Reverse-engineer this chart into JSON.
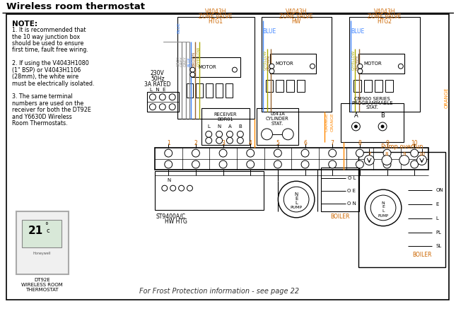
{
  "title": "Wireless room thermostat",
  "bg_color": "#ffffff",
  "note_title": "NOTE:",
  "note_lines": [
    "1. It is recommended that",
    "the 10 way junction box",
    "should be used to ensure",
    "first time, fault free wiring.",
    "",
    "2. If using the V4043H1080",
    "(1\" BSP) or V4043H1106",
    "(28mm), the white wire",
    "must be electrically isolated.",
    "",
    "3. The same terminal",
    "numbers are used on the",
    "receiver for both the DT92E",
    "and Y6630D Wireless",
    "Room Thermostats."
  ],
  "footer": "For Frost Protection information - see page 22",
  "thermostat_label": "DT92E\nWIRELESS ROOM\nTHERMOSTAT",
  "wire_colors": {
    "grey": "#888888",
    "blue": "#4488ff",
    "brown": "#996633",
    "gyellow": "#aaaa00",
    "orange": "#ff8800",
    "black": "#000000"
  },
  "zv_labels": [
    "V4043H\nZONE VALVE\nHTG1",
    "V4043H\nZONE VALVE\nHW",
    "V4043H\nZONE VALVE\nHTG2"
  ],
  "zv_blue_labels": [
    "",
    "BLUE",
    "BLUE"
  ],
  "mains": "230V\n50Hz\n3A RATED",
  "lne": "L  N  E",
  "receiver_label": "RECEIVER\nBOR01",
  "cyl_label": "L641A\nCYLINDER\nSTAT.",
  "cm900_label": "CM900 SERIES\nPROGRAMMABLE\nSTAT.",
  "pump_overrun": "Pump overrun",
  "st9400": "ST9400A/C",
  "hwhtg": "HW HTG",
  "boiler": "BOILER"
}
